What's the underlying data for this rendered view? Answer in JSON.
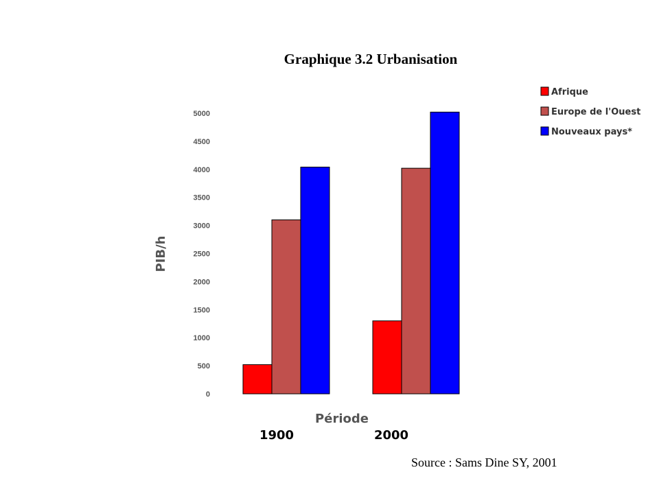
{
  "title": "Graphique 3.2 Urbanisation",
  "source": "Source : Sams Dine SY, 2001",
  "chart_data": {
    "type": "bar",
    "title": "Graphique 3.2 Urbanisation",
    "xlabel": "Période",
    "ylabel": "PIB/h",
    "categories": [
      "1900",
      "2000"
    ],
    "series": [
      {
        "name": "Afrique",
        "values": [
          520,
          1300
        ],
        "color": "#ff0000"
      },
      {
        "name": "Europe de l'Ouest",
        "values": [
          3100,
          4020
        ],
        "color": "#c0504d"
      },
      {
        "name": "Nouveaux pays*",
        "values": [
          4040,
          5020
        ],
        "color": "#0000ff"
      }
    ],
    "ylim": [
      0,
      5000
    ],
    "yticks": [
      "0",
      "500",
      "1000",
      "1500",
      "2000",
      "2500",
      "3000",
      "3500",
      "4000",
      "4500",
      "5000"
    ],
    "grid": false,
    "legend_position": "top-right"
  }
}
